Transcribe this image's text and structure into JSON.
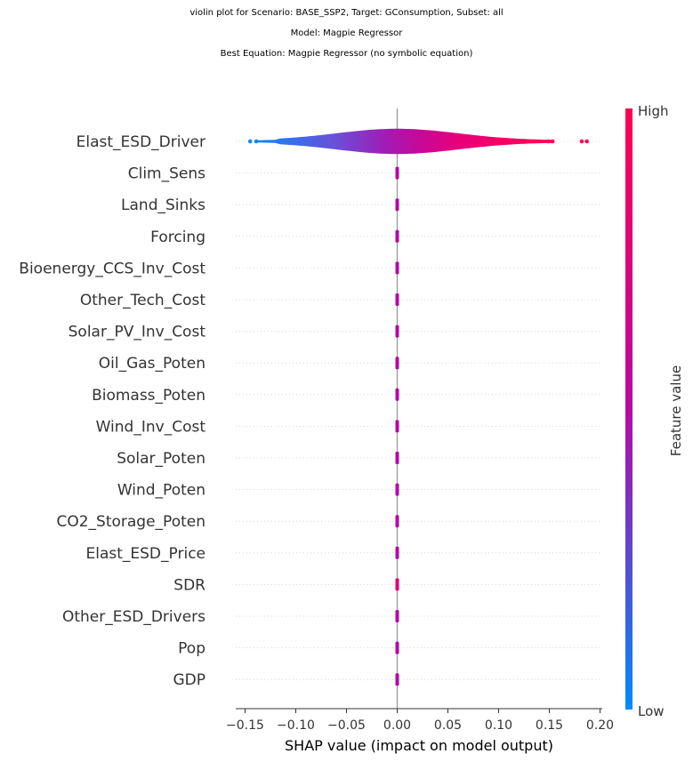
{
  "titles": {
    "line1": "violin plot for Scenario: BASE_SSP2, Target: GConsumption, Subset: all",
    "line2": "Model: Magpie Regressor",
    "line3": "Best Equation: Magpie Regressor (no symbolic equation)"
  },
  "colorbar": {
    "high_label": "High",
    "low_label": "Low",
    "title": "Feature value",
    "colors": {
      "low": "#008bfb",
      "mid": "#b60aa4",
      "high": "#ff0052"
    }
  },
  "chart_data": {
    "type": "violin",
    "xlabel": "SHAP value (impact on model output)",
    "xlim": [
      -0.16,
      0.205
    ],
    "xticks": [
      -0.15,
      -0.1,
      -0.05,
      0.0,
      0.05,
      0.1,
      0.15,
      0.2
    ],
    "xtick_labels": [
      "−0.15",
      "−0.10",
      "−0.05",
      "0.00",
      "0.05",
      "0.10",
      "0.15",
      "0.20"
    ],
    "features": [
      {
        "name": "Elast_ESD_Driver",
        "min": -0.148,
        "max": 0.188
      },
      {
        "name": "Clim_Sens",
        "min": -0.001,
        "max": 0.001
      },
      {
        "name": "Land_Sinks",
        "min": -0.001,
        "max": 0.001
      },
      {
        "name": "Forcing",
        "min": -0.001,
        "max": 0.001
      },
      {
        "name": "Bioenergy_CCS_Inv_Cost",
        "min": -0.001,
        "max": 0.001
      },
      {
        "name": "Other_Tech_Cost",
        "min": -0.001,
        "max": 0.001
      },
      {
        "name": "Solar_PV_Inv_Cost",
        "min": -0.001,
        "max": 0.001
      },
      {
        "name": "Oil_Gas_Poten",
        "min": -0.001,
        "max": 0.001
      },
      {
        "name": "Biomass_Poten",
        "min": -0.001,
        "max": 0.001
      },
      {
        "name": "Wind_Inv_Cost",
        "min": -0.001,
        "max": 0.001
      },
      {
        "name": "Solar_Poten",
        "min": -0.001,
        "max": 0.001
      },
      {
        "name": "Wind_Poten",
        "min": -0.001,
        "max": 0.001
      },
      {
        "name": "CO2_Storage_Poten",
        "min": -0.001,
        "max": 0.001
      },
      {
        "name": "Elast_ESD_Price",
        "min": -0.001,
        "max": 0.001
      },
      {
        "name": "SDR",
        "min": -0.001,
        "max": 0.001
      },
      {
        "name": "Other_ESD_Drivers",
        "min": -0.001,
        "max": 0.001
      },
      {
        "name": "Pop",
        "min": -0.001,
        "max": 0.001
      },
      {
        "name": "GDP",
        "min": -0.001,
        "max": 0.001
      }
    ],
    "outlier_points": [
      {
        "feature": "Elast_ESD_Driver",
        "x": -0.145,
        "color": "#008bfb"
      },
      {
        "feature": "Elast_ESD_Driver",
        "x": -0.139,
        "color": "#0a84f8"
      },
      {
        "feature": "Elast_ESD_Driver",
        "x": 0.149,
        "color": "#ff0052"
      },
      {
        "feature": "Elast_ESD_Driver",
        "x": 0.153,
        "color": "#ff0052"
      },
      {
        "feature": "Elast_ESD_Driver",
        "x": 0.182,
        "color": "#ff0052"
      },
      {
        "feature": "Elast_ESD_Driver",
        "x": 0.187,
        "color": "#ff0052"
      }
    ],
    "grid": false
  }
}
